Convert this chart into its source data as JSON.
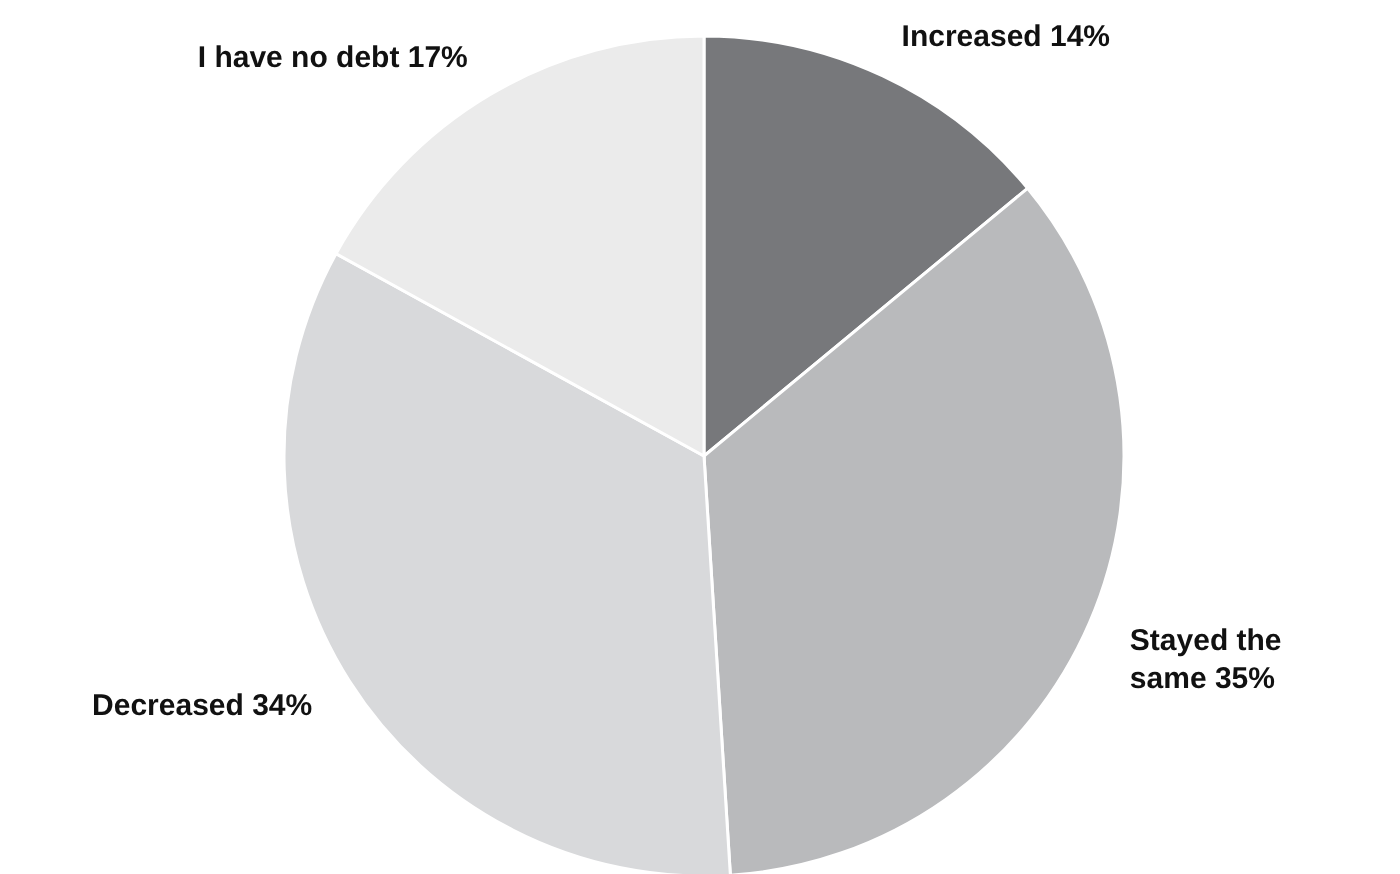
{
  "chart_data": {
    "type": "pie",
    "categories": [
      "Increased",
      "Stayed the same",
      "Decreased",
      "I have no debt"
    ],
    "values": [
      14,
      35,
      34,
      17
    ],
    "value_labels": [
      "14%",
      "35%",
      "34%",
      "17%"
    ],
    "colors": [
      "#77787b",
      "#b9babc",
      "#d8d9db",
      "#ebebeb"
    ]
  }
}
